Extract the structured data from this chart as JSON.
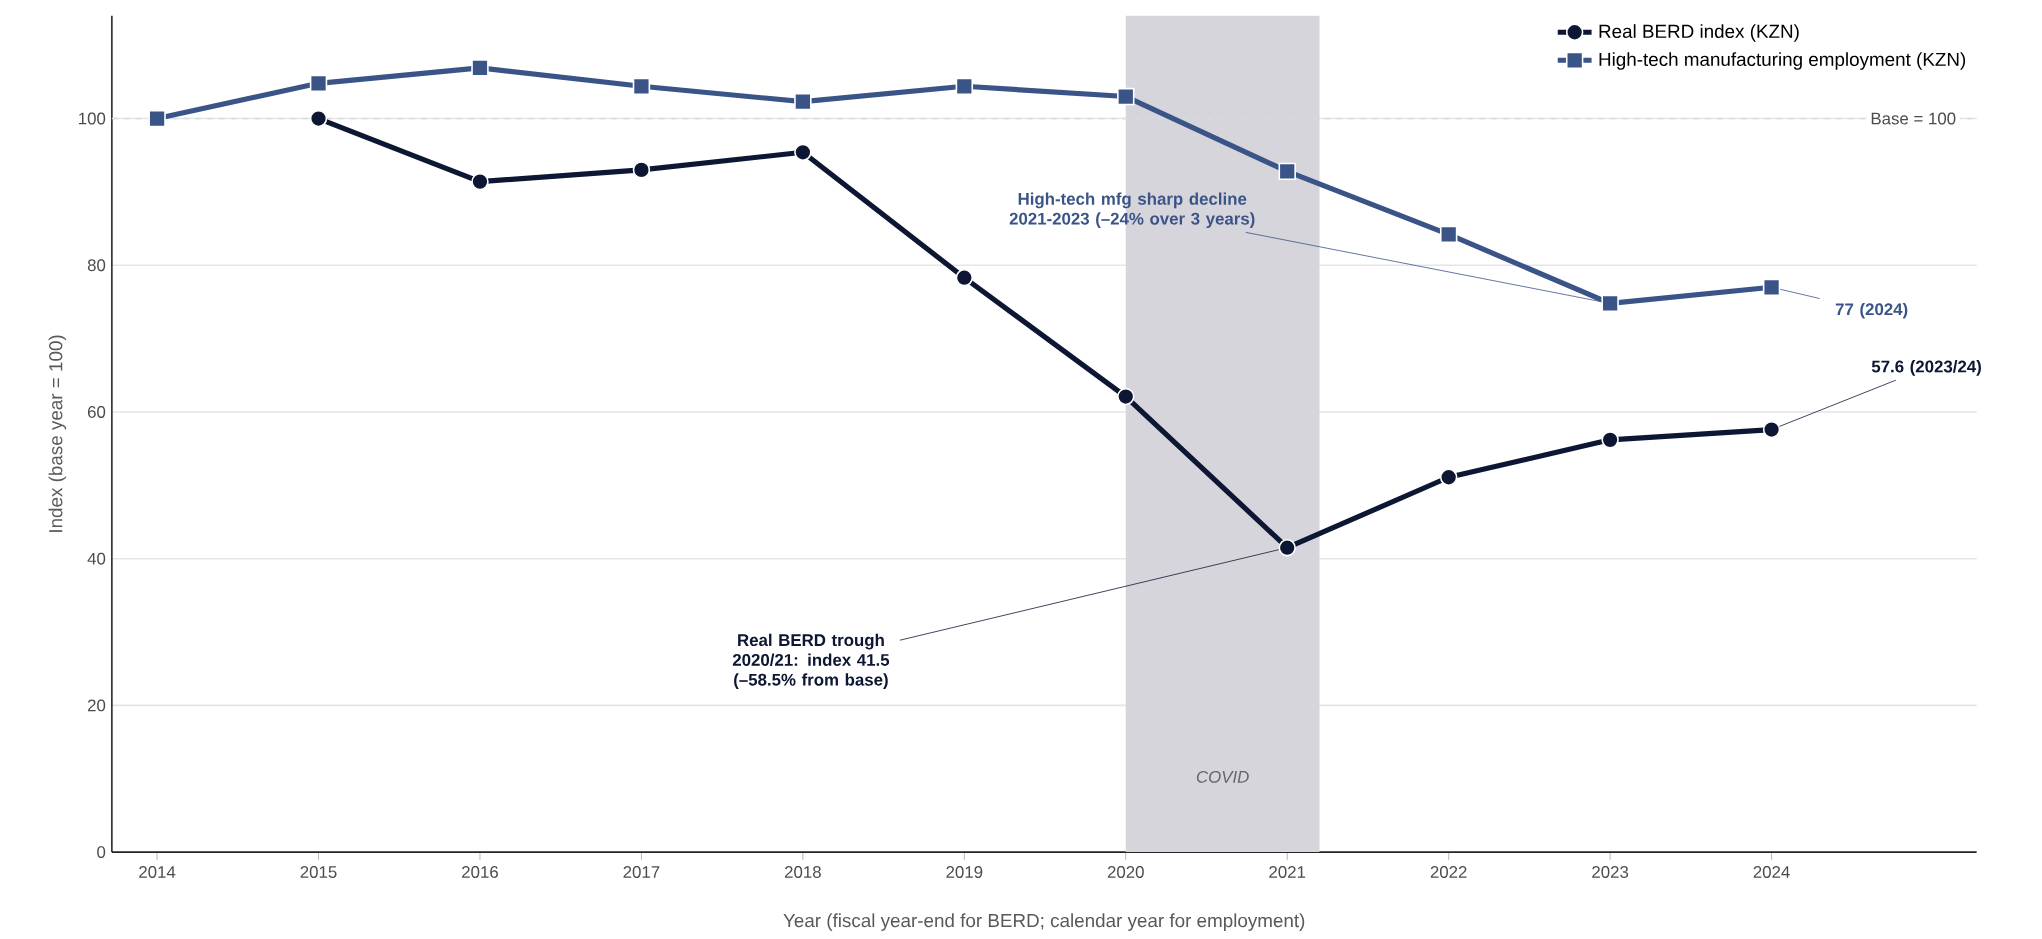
{
  "chart_data": {
    "type": "line",
    "xlabel": "Year (fiscal year-end for BERD; calendar year for employment)",
    "ylabel": "Index (base year = 100)",
    "x": [
      2014,
      2015,
      2016,
      2017,
      2018,
      2019,
      2020,
      2021,
      2022,
      2023,
      2024
    ],
    "series": [
      {
        "name": "Real BERD index (KZN)",
        "color": "#0d1733",
        "marker": "circle",
        "values": [
          null,
          100,
          91.4,
          93.0,
          95.4,
          78.3,
          62.1,
          41.5,
          51.1,
          56.2,
          57.6
        ]
      },
      {
        "name": "High-tech manufacturing employment (KZN)",
        "color": "#3a5488",
        "marker": "square",
        "values": [
          100,
          104.8,
          106.9,
          104.4,
          102.3,
          104.4,
          103.0,
          92.8,
          84.2,
          74.8,
          77
        ]
      }
    ],
    "xlim": [
      2013.72,
      2025.27
    ],
    "ylim": [
      0,
      114
    ],
    "xticks": [
      2014,
      2015,
      2016,
      2017,
      2018,
      2019,
      2020,
      2021,
      2022,
      2023,
      2024
    ],
    "yticks": [
      0,
      20,
      40,
      60,
      80,
      100
    ],
    "grid": "y",
    "legend": "top right",
    "line_style": "solid",
    "ref_lines": [
      {
        "axis": "y",
        "value": 100,
        "label": "Base = 100",
        "color": "#d8dbe3",
        "line_style": "dashed"
      }
    ],
    "bands": [
      {
        "axis": "x",
        "from": 2020,
        "to": 2021.2,
        "label": "COVID",
        "color": "#d6d5dc"
      }
    ],
    "annotations": [
      {
        "text": "Real BERD trough 2020/21: index 41.5 (–58.5% from base)",
        "x": 2021,
        "y": 41.5
      },
      {
        "text": "High-tech mfg sharp decline 2021-2023 (–24% over 3 years)",
        "x": 2023,
        "y": 74.8
      },
      {
        "text": "57.6 (2023/24)",
        "x": 2024,
        "y": 57.6
      },
      {
        "text": "77 (2024)",
        "x": 2024,
        "y": 77
      }
    ]
  }
}
